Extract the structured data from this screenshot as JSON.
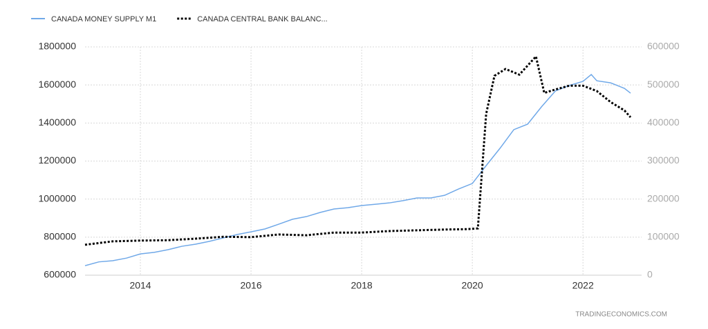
{
  "chart_data": {
    "type": "line",
    "source": "TRADINGECONOMICS.COM",
    "xlim": [
      2013,
      2023.06
    ],
    "xticks": [
      2014,
      2016,
      2018,
      2020,
      2022
    ],
    "ylim": [
      600000,
      1800000
    ],
    "yticks": [
      600000,
      800000,
      1000000,
      1200000,
      1400000,
      1600000,
      1800000
    ],
    "y2lim": [
      0,
      600000
    ],
    "y2ticks": [
      0,
      100000,
      200000,
      300000,
      400000,
      500000,
      600000
    ],
    "grid": true,
    "legend": "top",
    "series": [
      {
        "name": "CANADA MONEY SUPPLY M1",
        "color": "#6fa8e8",
        "style": "solid",
        "x": [
          2013,
          2013.25,
          2013.5,
          2013.75,
          2014,
          2014.25,
          2014.5,
          2014.75,
          2015,
          2015.25,
          2015.5,
          2015.75,
          2016,
          2016.25,
          2016.5,
          2016.75,
          2017,
          2017.25,
          2017.5,
          2017.75,
          2018,
          2018.25,
          2018.5,
          2018.75,
          2019,
          2019.25,
          2019.5,
          2019.75,
          2020,
          2020.25,
          2020.5,
          2020.75,
          2021,
          2021.25,
          2021.5,
          2021.75,
          2022,
          2022.15,
          2022.25,
          2022.5,
          2022.75,
          2022.86
        ],
        "values": [
          650000,
          670000,
          676000,
          690000,
          712000,
          720000,
          734000,
          752000,
          763000,
          778000,
          796000,
          814000,
          828000,
          843000,
          868000,
          894000,
          908000,
          930000,
          948000,
          955000,
          966000,
          973000,
          980000,
          992000,
          1006000,
          1006000,
          1020000,
          1053000,
          1082000,
          1176000,
          1267000,
          1365000,
          1394000,
          1485000,
          1568000,
          1597000,
          1619000,
          1655000,
          1622000,
          1611000,
          1582000,
          1557000
        ]
      },
      {
        "name": "CANADA CENTRAL BANK BALANC...",
        "color": "#000000",
        "style": "dotted",
        "axis": "y2",
        "x": [
          2013,
          2013.5,
          2014,
          2014.5,
          2015,
          2015.5,
          2016,
          2016.5,
          2017,
          2017.5,
          2018,
          2018.5,
          2019,
          2019.5,
          2019.9,
          2020.1,
          2020.25,
          2020.4,
          2020.6,
          2020.85,
          2021,
          2021.15,
          2021.3,
          2021.5,
          2021.75,
          2022,
          2022.25,
          2022.5,
          2022.75,
          2022.86
        ],
        "values": [
          80000,
          89000,
          91000,
          92000,
          96000,
          101000,
          100000,
          107000,
          105000,
          112000,
          112000,
          116000,
          118000,
          120000,
          121000,
          123000,
          424000,
          524000,
          542000,
          527000,
          551000,
          575000,
          479000,
          488000,
          498000,
          498000,
          484000,
          455000,
          433000,
          415000
        ]
      }
    ]
  }
}
